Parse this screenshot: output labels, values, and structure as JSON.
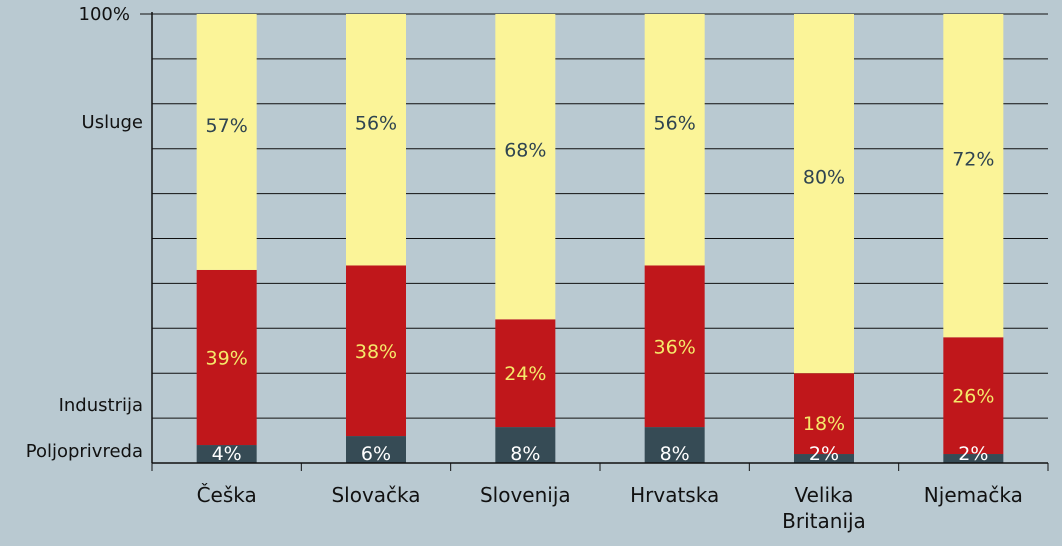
{
  "chart_data": {
    "type": "bar",
    "stacked": true,
    "percent": true,
    "categories": [
      [
        "Češka"
      ],
      [
        "Slovačka"
      ],
      [
        "Slovenija"
      ],
      [
        "Hrvatska"
      ],
      [
        "Velika",
        "Britanija"
      ],
      [
        "Njemačka"
      ]
    ],
    "series": [
      {
        "name": "Poljoprivreda",
        "values": [
          4,
          6,
          8,
          8,
          2,
          2
        ],
        "labels": [
          "4%",
          "6%",
          "8%",
          "8%",
          "2%",
          "2%"
        ],
        "color": "#364b55",
        "label_color": "#ffffff"
      },
      {
        "name": "Industrija",
        "values": [
          39,
          38,
          24,
          36,
          18,
          26
        ],
        "labels": [
          "39%",
          "38%",
          "24%",
          "36%",
          "18%",
          "26%"
        ],
        "color": "#c0171b",
        "label_color": "#f5e96a"
      },
      {
        "name": "Usluge",
        "values": [
          57,
          56,
          68,
          56,
          80,
          72
        ],
        "labels": [
          "57%",
          "56%",
          "68%",
          "56%",
          "80%",
          "72%"
        ],
        "color": "#fbf498",
        "label_color": "#2f4450"
      }
    ],
    "ylim": [
      0,
      100
    ],
    "y_top_label": "100%",
    "y_series_labels": [
      "Poljoprivreda",
      "Industrija",
      "Usluge"
    ],
    "grid": true,
    "background": "#b9c9d1",
    "grid_color": "#111111"
  }
}
